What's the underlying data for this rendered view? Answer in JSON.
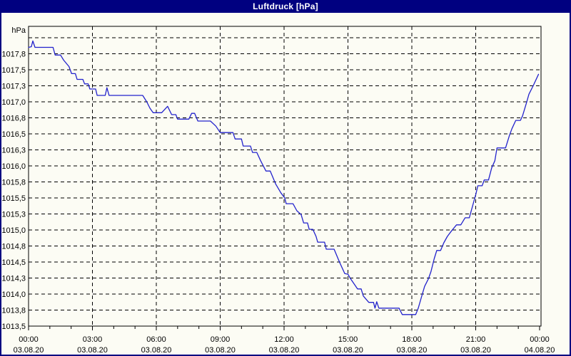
{
  "window": {
    "title": "Luftdruck [hPa]",
    "title_bar_color": "#000080",
    "title_text_color": "#ffffff",
    "background_color": "#fcfcf4",
    "border_color": "#000080"
  },
  "chart_data": {
    "type": "line",
    "title": "Luftdruck [hPa]",
    "unit_label": "hPa",
    "grid": {
      "style": "dashed",
      "color": "#000000"
    },
    "legend": "none",
    "x_axis": {
      "range_hours": [
        0,
        24
      ],
      "major_tick_hours": 3,
      "minor_tick_hours": 1,
      "ticks": [
        {
          "hour": 0,
          "time": "00:00",
          "date": "03.08.20"
        },
        {
          "hour": 3,
          "time": "03:00",
          "date": "03.08.20"
        },
        {
          "hour": 6,
          "time": "06:00",
          "date": "03.08.20"
        },
        {
          "hour": 9,
          "time": "09:00",
          "date": "03.08.20"
        },
        {
          "hour": 12,
          "time": "12:00",
          "date": "03.08.20"
        },
        {
          "hour": 15,
          "time": "15:00",
          "date": "03.08.20"
        },
        {
          "hour": 18,
          "time": "18:00",
          "date": "03.08.20"
        },
        {
          "hour": 21,
          "time": "21:00",
          "date": "03.08.20"
        },
        {
          "hour": 24,
          "time": "00:00",
          "date": "04.08.20"
        }
      ]
    },
    "y_axis": {
      "min": 1013.5,
      "max": 1018.19,
      "gridline_step": 0.25,
      "unlabeled_gridlines": [
        1018.0
      ],
      "ticks": [
        {
          "value": 1017.75,
          "label": "1017,8"
        },
        {
          "value": 1017.5,
          "label": "1017,5"
        },
        {
          "value": 1017.25,
          "label": "1017,3"
        },
        {
          "value": 1017.0,
          "label": "1017,0"
        },
        {
          "value": 1016.75,
          "label": "1016,8"
        },
        {
          "value": 1016.5,
          "label": "1016,5"
        },
        {
          "value": 1016.25,
          "label": "1016,3"
        },
        {
          "value": 1016.0,
          "label": "1016,0"
        },
        {
          "value": 1015.75,
          "label": "1015,8"
        },
        {
          "value": 1015.5,
          "label": "1015,5"
        },
        {
          "value": 1015.25,
          "label": "1015,3"
        },
        {
          "value": 1015.0,
          "label": "1015,0"
        },
        {
          "value": 1014.75,
          "label": "1014,8"
        },
        {
          "value": 1014.5,
          "label": "1014,5"
        },
        {
          "value": 1014.25,
          "label": "1014,3"
        },
        {
          "value": 1014.0,
          "label": "1014,0"
        },
        {
          "value": 1013.75,
          "label": "1013,8"
        },
        {
          "value": 1013.5,
          "label": "1013,5"
        }
      ]
    },
    "series": [
      {
        "name": "Luftdruck",
        "color": "#2222cc",
        "points": [
          [
            0.0,
            1017.85
          ],
          [
            0.13,
            1017.86
          ],
          [
            0.2,
            1017.95
          ],
          [
            0.3,
            1017.85
          ],
          [
            1.15,
            1017.85
          ],
          [
            1.25,
            1017.73
          ],
          [
            1.5,
            1017.73
          ],
          [
            1.65,
            1017.65
          ],
          [
            1.9,
            1017.55
          ],
          [
            2.02,
            1017.44
          ],
          [
            2.2,
            1017.44
          ],
          [
            2.28,
            1017.35
          ],
          [
            2.55,
            1017.35
          ],
          [
            2.63,
            1017.28
          ],
          [
            2.8,
            1017.28
          ],
          [
            2.88,
            1017.2
          ],
          [
            3.15,
            1017.2
          ],
          [
            3.22,
            1017.1
          ],
          [
            3.6,
            1017.1
          ],
          [
            3.68,
            1017.22
          ],
          [
            3.78,
            1017.1
          ],
          [
            5.36,
            1017.1
          ],
          [
            5.55,
            1017.0
          ],
          [
            5.7,
            1016.9
          ],
          [
            5.85,
            1016.83
          ],
          [
            6.25,
            1016.83
          ],
          [
            6.53,
            1016.93
          ],
          [
            6.72,
            1016.8
          ],
          [
            6.92,
            1016.8
          ],
          [
            7.0,
            1016.73
          ],
          [
            7.53,
            1016.73
          ],
          [
            7.66,
            1016.82
          ],
          [
            7.8,
            1016.82
          ],
          [
            7.95,
            1016.7
          ],
          [
            8.54,
            1016.7
          ],
          [
            8.8,
            1016.62
          ],
          [
            9.0,
            1016.52
          ],
          [
            9.6,
            1016.52
          ],
          [
            9.7,
            1016.42
          ],
          [
            10.0,
            1016.42
          ],
          [
            10.08,
            1016.31
          ],
          [
            10.42,
            1016.31
          ],
          [
            10.52,
            1016.21
          ],
          [
            10.72,
            1016.21
          ],
          [
            10.9,
            1016.08
          ],
          [
            11.15,
            1015.92
          ],
          [
            11.35,
            1015.92
          ],
          [
            11.6,
            1015.72
          ],
          [
            11.85,
            1015.58
          ],
          [
            12.03,
            1015.5
          ],
          [
            12.1,
            1015.41
          ],
          [
            12.42,
            1015.41
          ],
          [
            12.6,
            1015.3
          ],
          [
            12.8,
            1015.24
          ],
          [
            12.92,
            1015.11
          ],
          [
            13.1,
            1015.11
          ],
          [
            13.18,
            1015.01
          ],
          [
            13.35,
            1015.01
          ],
          [
            13.5,
            1014.9
          ],
          [
            13.58,
            1014.81
          ],
          [
            13.9,
            1014.81
          ],
          [
            13.98,
            1014.7
          ],
          [
            14.35,
            1014.7
          ],
          [
            14.6,
            1014.5
          ],
          [
            14.85,
            1014.32
          ],
          [
            15.0,
            1014.31
          ],
          [
            15.1,
            1014.25
          ],
          [
            15.45,
            1014.08
          ],
          [
            15.62,
            1014.08
          ],
          [
            15.72,
            1013.97
          ],
          [
            15.98,
            1013.87
          ],
          [
            16.2,
            1013.87
          ],
          [
            16.27,
            1013.78
          ],
          [
            16.35,
            1013.88
          ],
          [
            16.45,
            1013.78
          ],
          [
            17.4,
            1013.78
          ],
          [
            17.55,
            1013.68
          ],
          [
            18.18,
            1013.68
          ],
          [
            18.3,
            1013.78
          ],
          [
            18.45,
            1013.95
          ],
          [
            18.6,
            1014.12
          ],
          [
            18.78,
            1014.24
          ],
          [
            18.9,
            1014.35
          ],
          [
            19.05,
            1014.55
          ],
          [
            19.17,
            1014.68
          ],
          [
            19.35,
            1014.68
          ],
          [
            19.5,
            1014.8
          ],
          [
            19.67,
            1014.9
          ],
          [
            19.85,
            1014.98
          ],
          [
            20.1,
            1015.08
          ],
          [
            20.3,
            1015.08
          ],
          [
            20.5,
            1015.19
          ],
          [
            20.7,
            1015.19
          ],
          [
            20.85,
            1015.37
          ],
          [
            21.0,
            1015.55
          ],
          [
            21.1,
            1015.69
          ],
          [
            21.3,
            1015.69
          ],
          [
            21.4,
            1015.78
          ],
          [
            21.6,
            1015.78
          ],
          [
            21.75,
            1015.97
          ],
          [
            21.9,
            1016.08
          ],
          [
            22.0,
            1016.28
          ],
          [
            22.4,
            1016.28
          ],
          [
            22.58,
            1016.47
          ],
          [
            22.7,
            1016.58
          ],
          [
            22.88,
            1016.71
          ],
          [
            23.1,
            1016.71
          ],
          [
            23.2,
            1016.78
          ],
          [
            23.38,
            1016.98
          ],
          [
            23.5,
            1017.12
          ],
          [
            23.7,
            1017.25
          ],
          [
            23.95,
            1017.43
          ]
        ]
      }
    ]
  }
}
